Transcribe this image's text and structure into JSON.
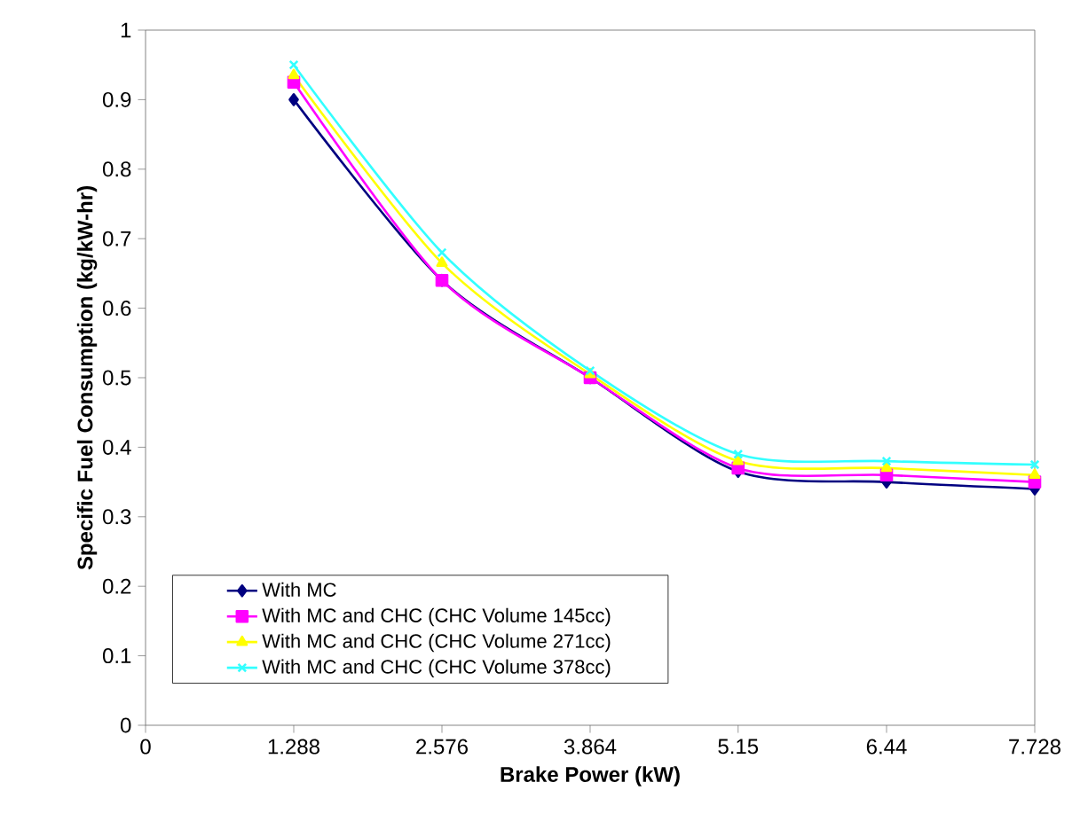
{
  "chart_data": {
    "type": "line",
    "xlabel": "Brake Power (kW)",
    "ylabel": "Specific Fuel Consumption  (kg/kW-hr)",
    "x": [
      1.288,
      2.576,
      3.864,
      5.15,
      6.44,
      7.728
    ],
    "series": [
      {
        "name": "With MC",
        "color": "#000080",
        "marker": "diamond",
        "values": [
          0.9,
          0.64,
          0.5,
          0.365,
          0.35,
          0.34
        ]
      },
      {
        "name": "With MC and CHC (CHC Volume 145cc)",
        "color": "#ff00ff",
        "marker": "square",
        "values": [
          0.925,
          0.64,
          0.5,
          0.37,
          0.36,
          0.35
        ]
      },
      {
        "name": "With MC and CHC (CHC Volume 271cc)",
        "color": "#ffff00",
        "marker": "triangle",
        "values": [
          0.935,
          0.665,
          0.505,
          0.38,
          0.37,
          0.36
        ]
      },
      {
        "name": "With MC and CHC (CHC Volume 378cc)",
        "color": "#33ffff",
        "marker": "cross",
        "values": [
          0.95,
          0.68,
          0.51,
          0.39,
          0.38,
          0.375
        ]
      }
    ],
    "xlim": [
      0,
      7.728
    ],
    "xticks": [
      0,
      1.288,
      2.576,
      3.864,
      5.15,
      6.44,
      7.728
    ],
    "ylim": [
      0,
      1
    ],
    "yticks": [
      0,
      0.1,
      0.2,
      0.3,
      0.4,
      0.5,
      0.6,
      0.7,
      0.8,
      0.9,
      1
    ],
    "legend": "bottom left",
    "line_style": "solid",
    "grid": false
  }
}
